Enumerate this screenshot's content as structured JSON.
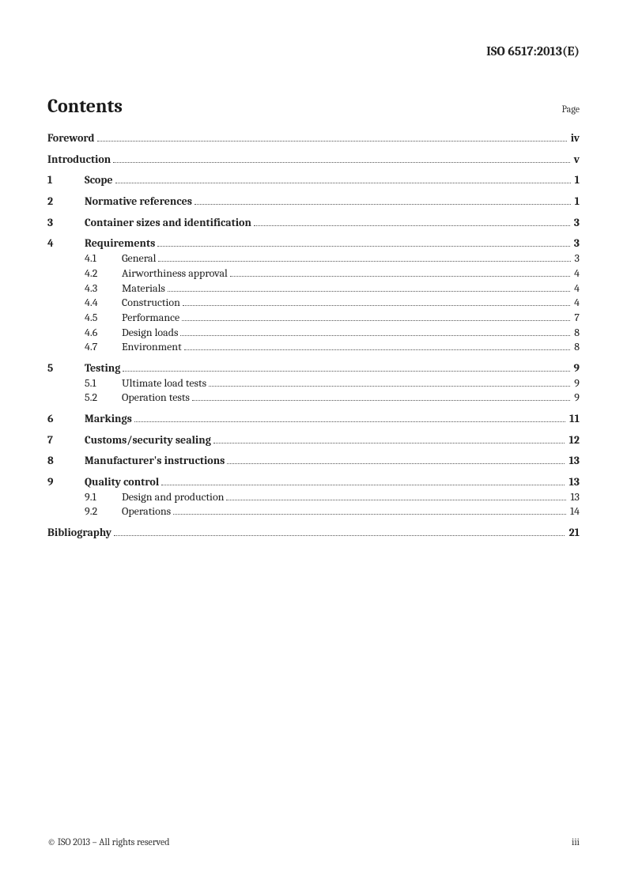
{
  "doc_id": "ISO 6517:2013(E)",
  "contents_title": "Contents",
  "page_label": "Page",
  "footer_left": "© ISO 2013 – All rights reserved",
  "footer_right": "iii",
  "toc": {
    "foreword": {
      "title": "Foreword",
      "page": "iv"
    },
    "introduction": {
      "title": "Introduction",
      "page": "v"
    },
    "s1": {
      "num": "1",
      "title": "Scope",
      "page": "1"
    },
    "s2": {
      "num": "2",
      "title": "Normative references",
      "page": "1"
    },
    "s3": {
      "num": "3",
      "title": "Container sizes and identification",
      "page": "3"
    },
    "s4": {
      "num": "4",
      "title": "Requirements",
      "page": "3",
      "subs": [
        {
          "num": "4.1",
          "title": "General",
          "page": "3"
        },
        {
          "num": "4.2",
          "title": "Airworthiness approval",
          "page": "4"
        },
        {
          "num": "4.3",
          "title": "Materials",
          "page": "4"
        },
        {
          "num": "4.4",
          "title": "Construction",
          "page": "4"
        },
        {
          "num": "4.5",
          "title": "Performance",
          "page": "7"
        },
        {
          "num": "4.6",
          "title": "Design loads",
          "page": "8"
        },
        {
          "num": "4.7",
          "title": "Environment",
          "page": "8"
        }
      ]
    },
    "s5": {
      "num": "5",
      "title": "Testing",
      "page": "9",
      "subs": [
        {
          "num": "5.1",
          "title": "Ultimate load tests",
          "page": "9"
        },
        {
          "num": "5.2",
          "title": "Operation tests",
          "page": "9"
        }
      ]
    },
    "s6": {
      "num": "6",
      "title": "Markings",
      "page": "11"
    },
    "s7": {
      "num": "7",
      "title": "Customs/security sealing",
      "page": "12"
    },
    "s8": {
      "num": "8",
      "title": "Manufacturer's instructions",
      "page": "13"
    },
    "s9": {
      "num": "9",
      "title": "Quality control",
      "page": "13",
      "subs": [
        {
          "num": "9.1",
          "title": "Design and production",
          "page": "13"
        },
        {
          "num": "9.2",
          "title": "Operations",
          "page": "14"
        }
      ]
    },
    "bibliography": {
      "title": "Bibliography",
      "page": "21"
    }
  }
}
